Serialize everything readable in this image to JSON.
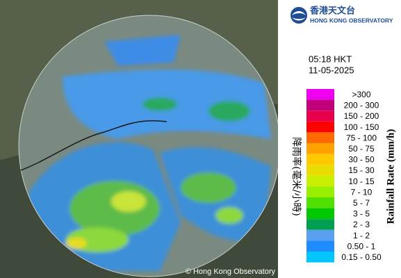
{
  "logo": {
    "chinese": "香港天文台",
    "english": "HONG KONG OBSERVATORY"
  },
  "time": "05:18 HKT",
  "date": "11-05-2025",
  "legend": {
    "title": "Rainfall Rate (mm/h)",
    "title_chinese": "降雨率(毫米/小時)",
    "items": [
      {
        "label": ">300",
        "color": "#f000f0"
      },
      {
        "label": "200 - 300",
        "color": "#c0007a"
      },
      {
        "label": "150 - 200",
        "color": "#e6004b"
      },
      {
        "label": "100 - 150",
        "color": "#ff0000"
      },
      {
        "label": "75 - 100",
        "color": "#ff6a00"
      },
      {
        "label": "50 - 75",
        "color": "#ffa200"
      },
      {
        "label": "30 - 50",
        "color": "#ffc800"
      },
      {
        "label": "15 - 30",
        "color": "#e8dc00"
      },
      {
        "label": "10 - 15",
        "color": "#c8f000"
      },
      {
        "label": "7 - 10",
        "color": "#96f000"
      },
      {
        "label": "5 - 7",
        "color": "#50e000"
      },
      {
        "label": "3 - 5",
        "color": "#00c800"
      },
      {
        "label": "2 - 3",
        "color": "#00a050"
      },
      {
        "label": "1 - 2",
        "color": "#5aa0f0"
      },
      {
        "label": "0.50 - 1",
        "color": "#1e8cff"
      },
      {
        "label": "0.15 - 0.50",
        "color": "#00c8ff"
      }
    ]
  },
  "copyright": "© Hong Kong Observatory"
}
